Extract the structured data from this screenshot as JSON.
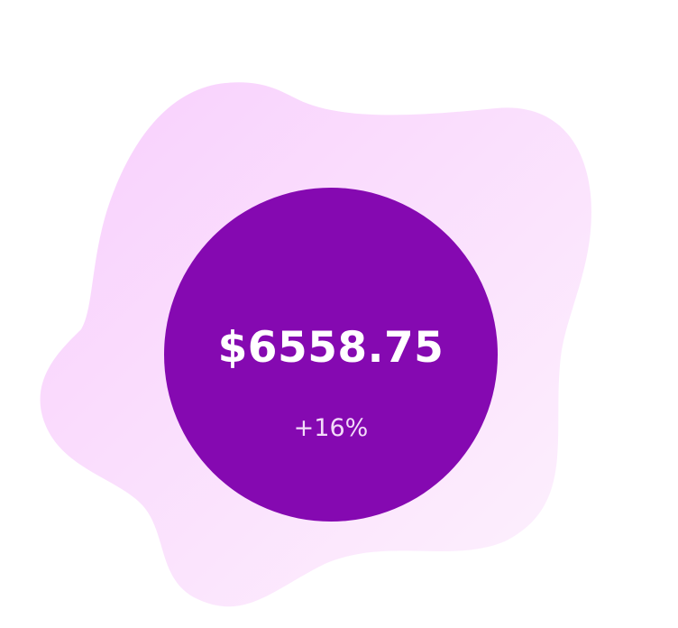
{
  "stat": {
    "amount": "$6558.75",
    "change": "+16%"
  },
  "colors": {
    "circle": "#8509b1",
    "blob_top": "#f8cffd",
    "blob_bottom": "#fdf2fd",
    "amount_text": "#ffffff",
    "change_text": "#f3dcf9"
  }
}
